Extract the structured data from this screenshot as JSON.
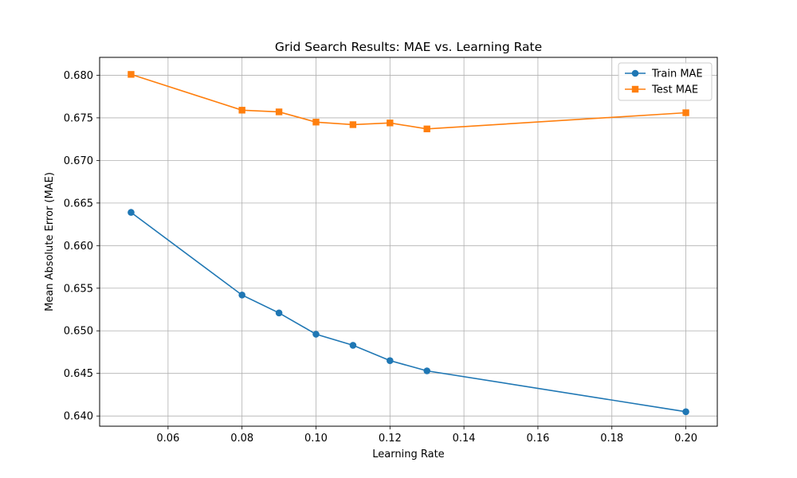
{
  "chart_data": {
    "type": "line",
    "title": "Grid Search Results: MAE vs. Learning Rate",
    "xlabel": "Learning Rate",
    "ylabel": "Mean Absolute Error (MAE)",
    "x": [
      0.05,
      0.08,
      0.09,
      0.1,
      0.11,
      0.12,
      0.13,
      0.2
    ],
    "xlim": [
      0.0415,
      0.2085
    ],
    "ylim": [
      0.6388,
      0.6821
    ],
    "xticks": [
      0.06,
      0.08,
      0.1,
      0.12,
      0.14,
      0.16,
      0.18,
      0.2
    ],
    "xtick_labels": [
      "0.06",
      "0.08",
      "0.10",
      "0.12",
      "0.14",
      "0.16",
      "0.18",
      "0.20"
    ],
    "yticks": [
      0.64,
      0.645,
      0.65,
      0.655,
      0.66,
      0.665,
      0.67,
      0.675,
      0.68
    ],
    "ytick_labels": [
      "0.640",
      "0.645",
      "0.650",
      "0.655",
      "0.660",
      "0.665",
      "0.670",
      "0.675",
      "0.680"
    ],
    "grid": true,
    "legend_position": "top-right",
    "series": [
      {
        "name": "Train MAE",
        "marker": "circle",
        "color": "#1f77b4",
        "values": [
          0.6639,
          0.6542,
          0.6521,
          0.6496,
          0.6483,
          0.6465,
          0.6453,
          0.6405
        ]
      },
      {
        "name": "Test MAE",
        "marker": "square",
        "color": "#ff7f0e",
        "values": [
          0.6801,
          0.6759,
          0.6757,
          0.6745,
          0.6742,
          0.6744,
          0.6737,
          0.6756
        ]
      }
    ]
  }
}
